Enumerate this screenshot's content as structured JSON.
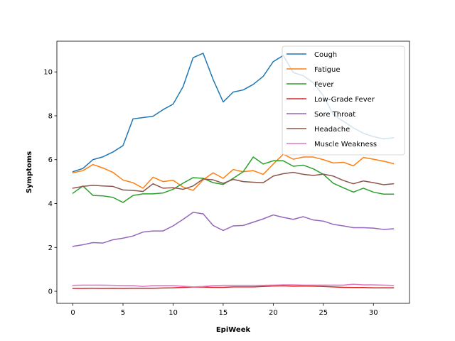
{
  "chart_data": {
    "type": "line",
    "xlabel": "EpiWeek",
    "ylabel": "Symptoms",
    "xlim": [
      -1.6,
      33.6
    ],
    "ylim": [
      -0.55,
      11.4
    ],
    "x_ticks": [
      0,
      5,
      10,
      15,
      20,
      25,
      30
    ],
    "y_ticks": [
      0,
      2,
      4,
      6,
      8,
      10
    ],
    "grid": false,
    "legend": "top-right",
    "x": [
      0,
      1,
      2,
      3,
      4,
      5,
      6,
      7,
      8,
      9,
      10,
      11,
      12,
      13,
      14,
      15,
      16,
      17,
      18,
      19,
      20,
      21,
      22,
      23,
      24,
      25,
      26,
      27,
      28,
      29,
      30,
      31,
      32
    ],
    "series": [
      {
        "name": "Cough",
        "color": "#1f77b4",
        "values": [
          5.45,
          5.6,
          6.0,
          6.13,
          6.35,
          6.64,
          7.86,
          7.92,
          7.98,
          8.28,
          8.53,
          9.33,
          10.65,
          10.85,
          9.65,
          8.63,
          9.08,
          9.18,
          9.43,
          9.8,
          10.47,
          10.75,
          9.97,
          9.83,
          9.5,
          8.92,
          8.05,
          7.75,
          7.45,
          7.2,
          7.05,
          6.95,
          7.0
        ]
      },
      {
        "name": "Fatigue",
        "color": "#ff7f0e",
        "values": [
          5.4,
          5.5,
          5.78,
          5.62,
          5.42,
          5.07,
          4.95,
          4.7,
          5.2,
          5.0,
          5.06,
          4.75,
          4.6,
          5.08,
          5.4,
          5.15,
          5.55,
          5.45,
          5.5,
          5.33,
          5.8,
          6.25,
          6.02,
          6.12,
          6.12,
          6.0,
          5.85,
          5.88,
          5.72,
          6.1,
          6.02,
          5.93,
          5.82
        ]
      },
      {
        "name": "Fever",
        "color": "#2ca02c",
        "values": [
          4.47,
          4.8,
          4.37,
          4.35,
          4.28,
          4.05,
          4.37,
          4.44,
          4.44,
          4.48,
          4.65,
          4.93,
          5.18,
          5.15,
          4.95,
          4.87,
          5.15,
          5.45,
          6.12,
          5.8,
          5.95,
          5.95,
          5.7,
          5.75,
          5.58,
          5.33,
          4.92,
          4.72,
          4.52,
          4.7,
          4.52,
          4.43,
          4.43
        ]
      },
      {
        "name": "Low-Grade Fever",
        "color": "#d62728",
        "values": [
          0.13,
          0.13,
          0.14,
          0.13,
          0.14,
          0.13,
          0.14,
          0.14,
          0.14,
          0.15,
          0.16,
          0.18,
          0.19,
          0.19,
          0.18,
          0.18,
          0.2,
          0.2,
          0.2,
          0.22,
          0.24,
          0.25,
          0.23,
          0.24,
          0.23,
          0.22,
          0.2,
          0.18,
          0.17,
          0.17,
          0.16,
          0.16,
          0.16
        ]
      },
      {
        "name": "Sore Throat",
        "color": "#9467bd",
        "values": [
          2.05,
          2.12,
          2.22,
          2.2,
          2.35,
          2.42,
          2.52,
          2.7,
          2.75,
          2.75,
          2.98,
          3.28,
          3.6,
          3.53,
          3.0,
          2.77,
          2.98,
          3.0,
          3.15,
          3.3,
          3.48,
          3.37,
          3.28,
          3.4,
          3.25,
          3.2,
          3.05,
          2.98,
          2.9,
          2.9,
          2.88,
          2.82,
          2.85
        ]
      },
      {
        "name": "Headache",
        "color": "#8c564b",
        "values": [
          4.7,
          4.78,
          4.83,
          4.8,
          4.78,
          4.62,
          4.6,
          4.55,
          4.9,
          4.7,
          4.72,
          4.65,
          4.8,
          5.12,
          5.08,
          4.92,
          5.1,
          5.0,
          4.97,
          4.95,
          5.25,
          5.36,
          5.42,
          5.33,
          5.28,
          5.34,
          5.25,
          5.05,
          4.9,
          5.03,
          4.95,
          4.86,
          4.9
        ]
      },
      {
        "name": "Muscle Weakness",
        "color": "#e377c2",
        "values": [
          0.27,
          0.28,
          0.28,
          0.28,
          0.27,
          0.26,
          0.26,
          0.22,
          0.26,
          0.26,
          0.26,
          0.23,
          0.2,
          0.22,
          0.26,
          0.27,
          0.27,
          0.27,
          0.27,
          0.27,
          0.28,
          0.29,
          0.29,
          0.28,
          0.28,
          0.28,
          0.28,
          0.28,
          0.32,
          0.29,
          0.29,
          0.28,
          0.27
        ]
      }
    ]
  }
}
